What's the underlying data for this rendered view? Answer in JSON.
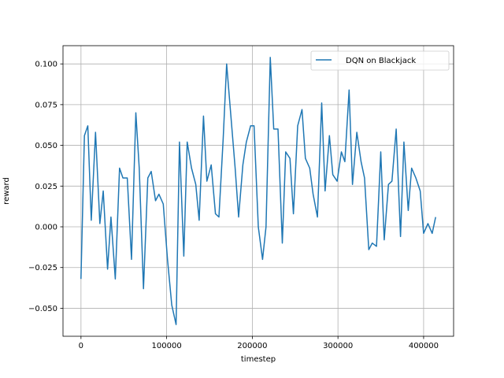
{
  "chart_data": {
    "type": "line",
    "title": "",
    "xlabel": "timestep",
    "ylabel": "reward",
    "xlim": [
      -21000,
      435000
    ],
    "ylim": [
      -0.0672,
      0.1112
    ],
    "xticks": [
      0,
      100000,
      200000,
      300000,
      400000
    ],
    "xtick_labels": [
      "0",
      "100000",
      "200000",
      "300000",
      "400000"
    ],
    "yticks": [
      -0.05,
      -0.025,
      0.0,
      0.025,
      0.05,
      0.075,
      0.1
    ],
    "ytick_labels": [
      "−0.050",
      "−0.025",
      "0.000",
      "0.025",
      "0.050",
      "0.075",
      "0.100"
    ],
    "grid": true,
    "legend_position": "top-right",
    "series": [
      {
        "name": "DQN on Blackjack",
        "color": "#1f77b4",
        "x": [
          0,
          4000,
          8000,
          12000,
          17000,
          22000,
          26000,
          31000,
          35000,
          40000,
          45000,
          49000,
          54000,
          59000,
          64000,
          68000,
          73000,
          78000,
          82000,
          87000,
          91000,
          96000,
          101000,
          106000,
          111000,
          115000,
          120000,
          124000,
          129000,
          134000,
          138000,
          143000,
          147000,
          152000,
          157000,
          161000,
          166000,
          170000,
          175000,
          180000,
          184000,
          189000,
          193000,
          198000,
          202000,
          207000,
          212000,
          216000,
          221000,
          225000,
          230000,
          235000,
          239000,
          244000,
          248000,
          253000,
          258000,
          262000,
          267000,
          271000,
          276000,
          281000,
          285000,
          290000,
          294000,
          299000,
          304000,
          308000,
          313000,
          317000,
          322000,
          327000,
          331000,
          336000,
          340000,
          345000,
          350000,
          354000,
          359000,
          363000,
          368000,
          373000,
          377000,
          382000,
          386000,
          391000,
          396000,
          400000,
          405000,
          410000,
          414000
        ],
        "values": [
          -0.032,
          0.056,
          0.062,
          0.004,
          0.058,
          0.002,
          0.022,
          -0.026,
          0.006,
          -0.032,
          0.036,
          0.03,
          0.03,
          -0.02,
          0.07,
          0.036,
          -0.038,
          0.03,
          0.034,
          0.016,
          0.02,
          0.014,
          -0.02,
          -0.048,
          -0.06,
          0.052,
          -0.018,
          0.052,
          0.036,
          0.026,
          0.004,
          0.068,
          0.028,
          0.038,
          0.008,
          0.006,
          0.054,
          0.1,
          0.068,
          0.036,
          0.006,
          0.038,
          0.052,
          0.062,
          0.062,
          0.0,
          -0.02,
          0.0,
          0.104,
          0.06,
          0.06,
          -0.01,
          0.046,
          0.042,
          0.008,
          0.062,
          0.072,
          0.042,
          0.036,
          0.02,
          0.006,
          0.076,
          0.022,
          0.056,
          0.032,
          0.028,
          0.046,
          0.04,
          0.084,
          0.026,
          0.058,
          0.04,
          0.03,
          -0.014,
          -0.01,
          -0.012,
          0.046,
          -0.008,
          0.026,
          0.028,
          0.06,
          -0.006,
          0.052,
          0.01,
          0.036,
          0.03,
          0.022,
          -0.004,
          0.002,
          -0.004,
          0.006
        ]
      }
    ]
  }
}
